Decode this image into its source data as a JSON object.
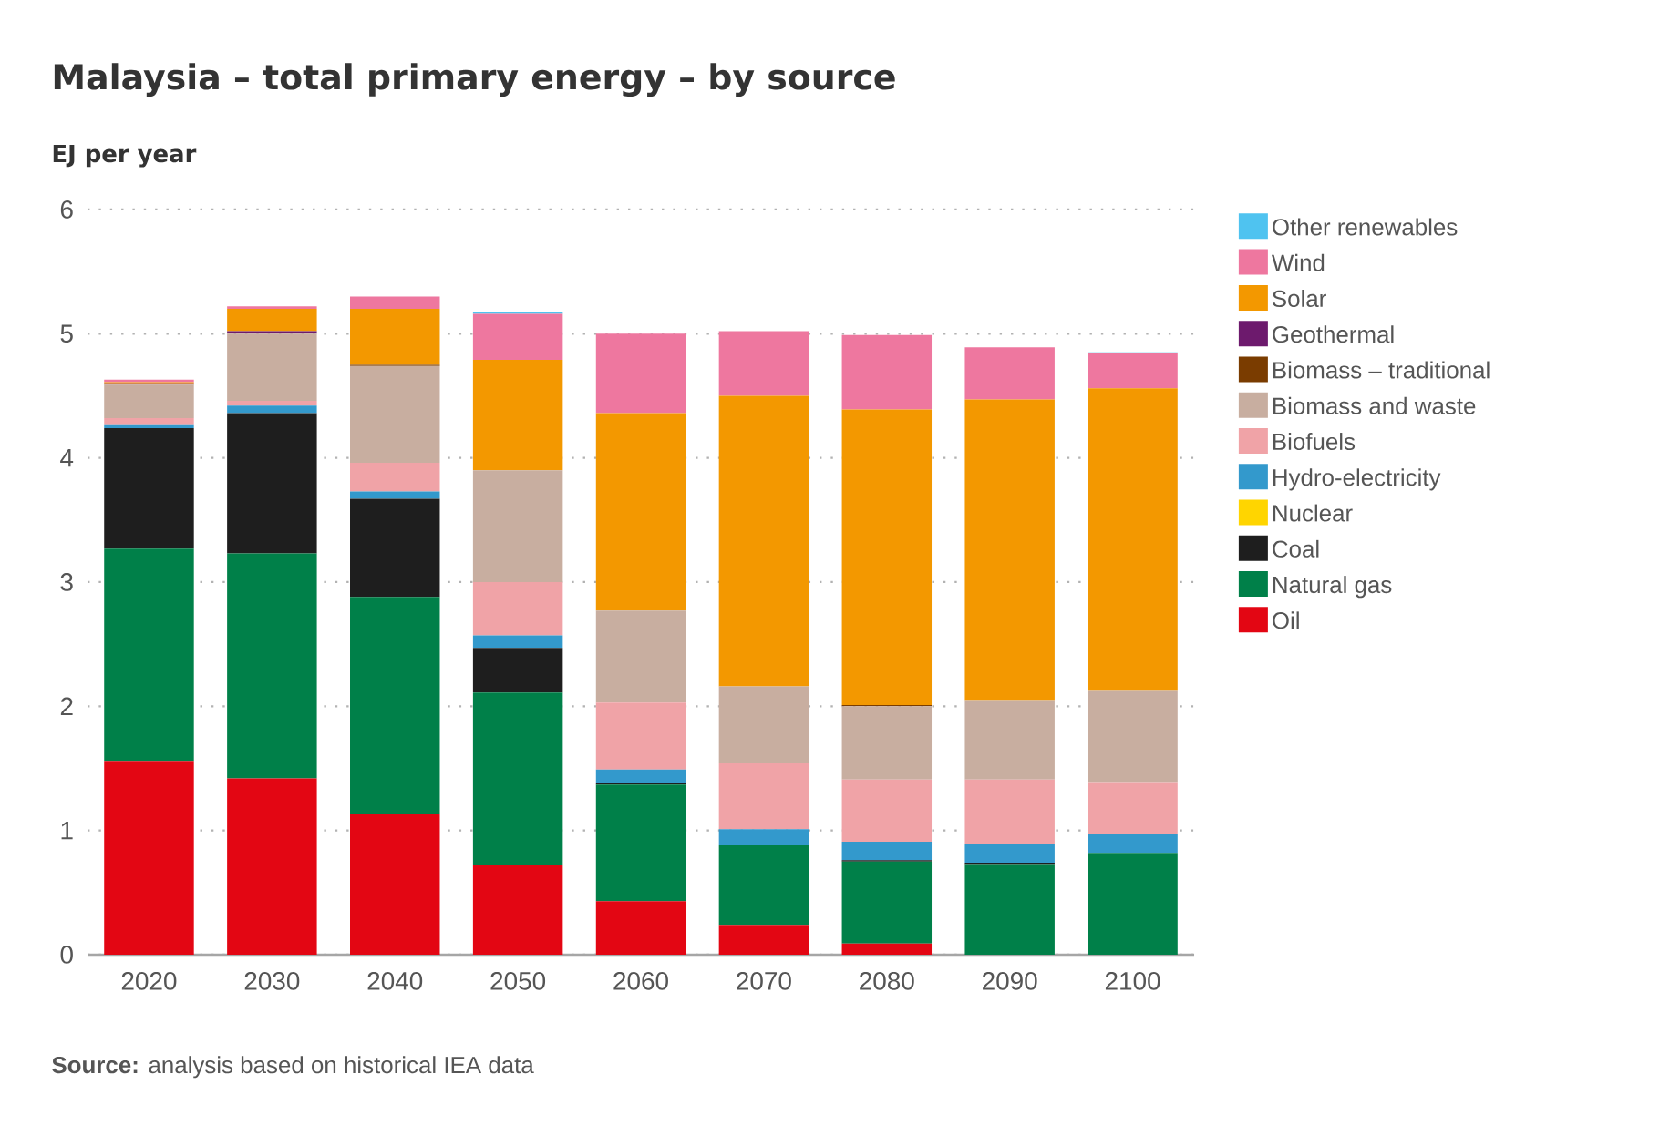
{
  "chart_data": {
    "type": "bar",
    "stacked": true,
    "title": "Malaysia – total primary energy – by source",
    "ylabel": "EJ per year",
    "categories": [
      "2020",
      "2030",
      "2040",
      "2050",
      "2060",
      "2070",
      "2080",
      "2090",
      "2100"
    ],
    "ylim": [
      0,
      6
    ],
    "yticks": [
      0,
      1,
      2,
      3,
      4,
      5,
      6
    ],
    "grid": "y",
    "legend": "right",
    "annotations": [
      "**Source:** analysis based on historical IEA data"
    ],
    "series": [
      {
        "name": "Oil",
        "color": "#e30613",
        "values": [
          1.56,
          1.42,
          1.13,
          0.72,
          0.43,
          0.24,
          0.09,
          0,
          0
        ]
      },
      {
        "name": "Natural gas",
        "color": "#008049",
        "values": [
          1.71,
          1.81,
          1.75,
          1.39,
          0.94,
          0.64,
          0.66,
          0.73,
          0.82
        ]
      },
      {
        "name": "Coal",
        "color": "#1e1e1e",
        "values": [
          0.97,
          1.13,
          0.79,
          0.36,
          0.01,
          0,
          0.01,
          0.01,
          0
        ]
      },
      {
        "name": "Nuclear",
        "color": "#ffd500",
        "values": [
          0,
          0,
          0,
          0,
          0,
          0,
          0,
          0,
          0
        ]
      },
      {
        "name": "Hydro-electricity",
        "color": "#3399cc",
        "values": [
          0.03,
          0.06,
          0.06,
          0.1,
          0.11,
          0.13,
          0.15,
          0.15,
          0.15
        ]
      },
      {
        "name": "Biofuels",
        "color": "#f0a3a7",
        "values": [
          0.05,
          0.04,
          0.23,
          0.43,
          0.54,
          0.53,
          0.5,
          0.52,
          0.42
        ]
      },
      {
        "name": "Biomass and waste",
        "color": "#c8aea0",
        "values": [
          0.27,
          0.54,
          0.78,
          0.9,
          0.74,
          0.62,
          0.59,
          0.64,
          0.74
        ]
      },
      {
        "name": "Biomass – traditional",
        "color": "#7a3c00",
        "values": [
          0,
          0,
          0.01,
          0,
          0,
          0,
          0.01,
          0,
          0
        ]
      },
      {
        "name": "Geothermal",
        "color": "#6d1a6d",
        "values": [
          0.01,
          0.02,
          0,
          0,
          0,
          0,
          0,
          0,
          0
        ]
      },
      {
        "name": "Solar",
        "color": "#f39800",
        "values": [
          0.01,
          0.18,
          0.45,
          0.89,
          1.59,
          2.34,
          2.38,
          2.42,
          2.43
        ]
      },
      {
        "name": "Wind",
        "color": "#ee779f",
        "values": [
          0.02,
          0.02,
          0.1,
          0.37,
          0.64,
          0.52,
          0.6,
          0.42,
          0.28
        ]
      },
      {
        "name": "Other renewables",
        "color": "#4fc3f0",
        "values": [
          0,
          0,
          0,
          0.01,
          0,
          0,
          0,
          0,
          0.01
        ]
      }
    ]
  }
}
